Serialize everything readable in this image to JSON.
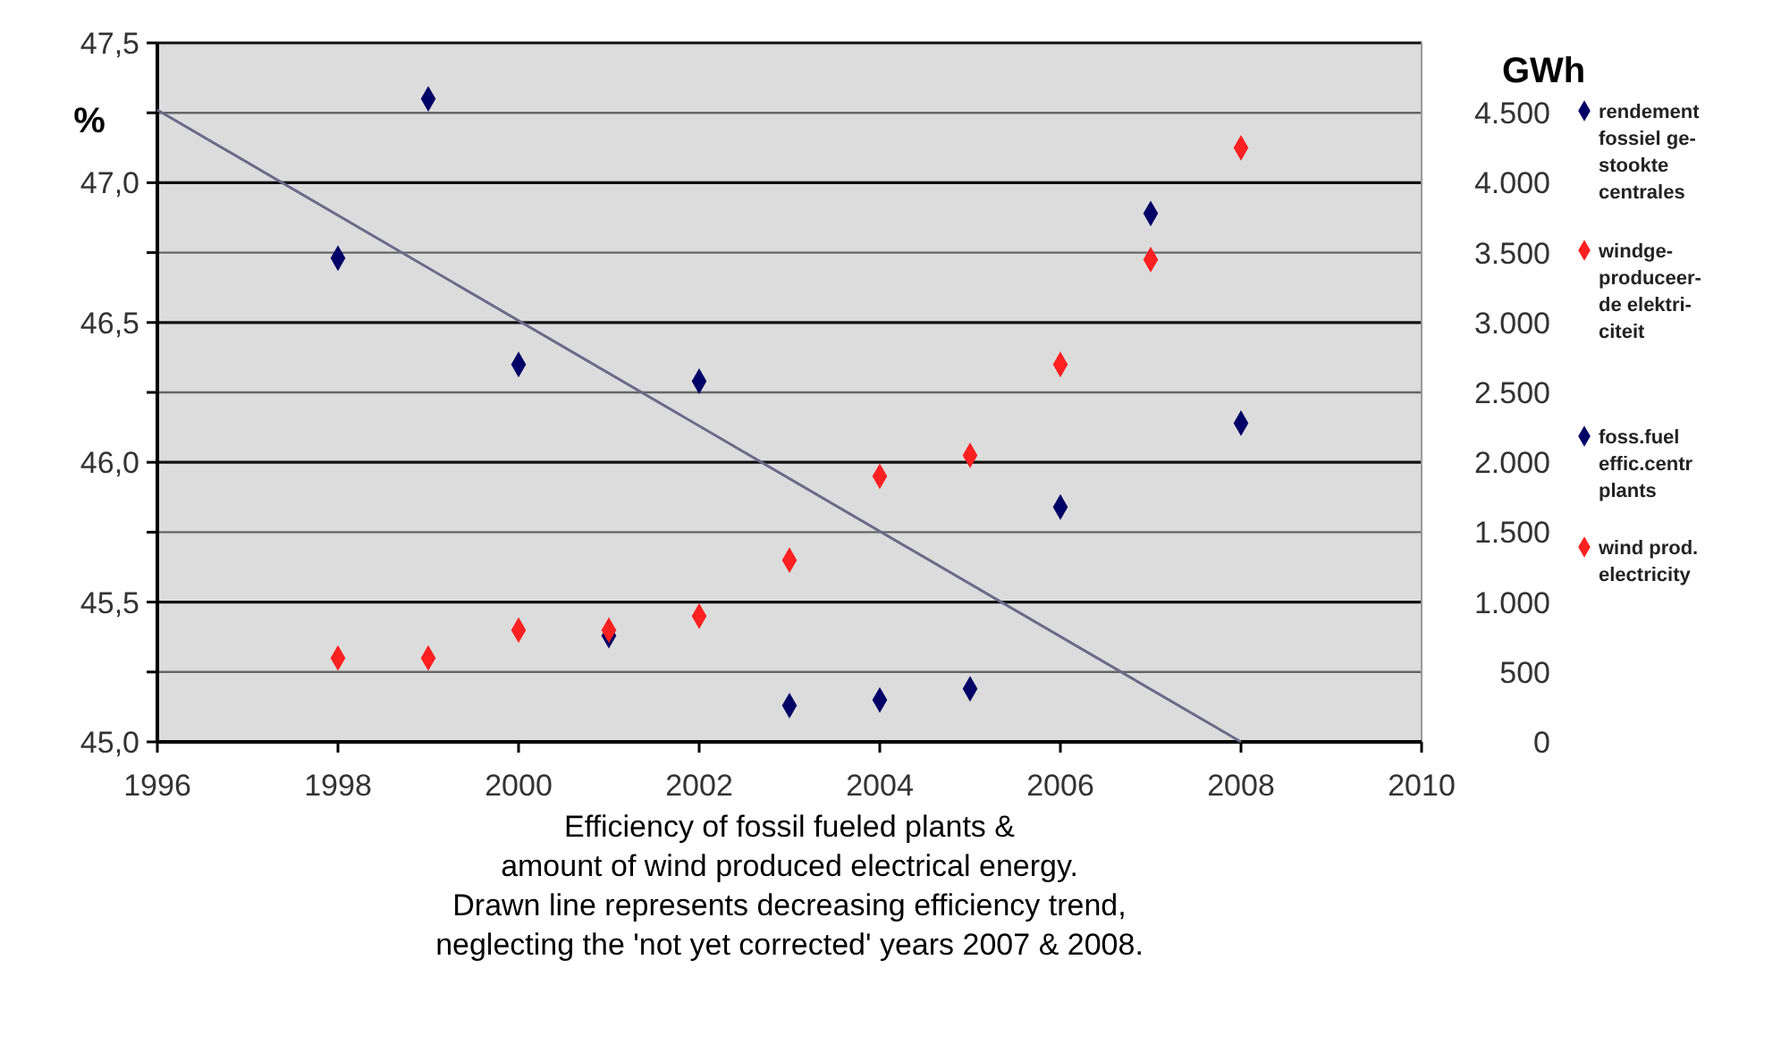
{
  "chart_data": {
    "type": "scatter",
    "marker": "diamond",
    "grid": true,
    "legend": "right",
    "ylabel": "%",
    "y2label": "GWh",
    "x": [
      1998,
      1999,
      2000,
      2001,
      2002,
      2003,
      2004,
      2005,
      2006,
      2007,
      2008
    ],
    "xlim": [
      1996,
      2010
    ],
    "xticks": [
      1996,
      1998,
      2000,
      2002,
      2004,
      2006,
      2008,
      2010
    ],
    "ylim": [
      45.0,
      47.5
    ],
    "yticks": [
      {
        "value": 45.0,
        "label": "45,0"
      },
      {
        "value": 45.25,
        "label": null
      },
      {
        "value": 45.5,
        "label": "45,5"
      },
      {
        "value": 45.75,
        "label": null
      },
      {
        "value": 46.0,
        "label": "46,0"
      },
      {
        "value": 46.25,
        "label": null
      },
      {
        "value": 46.5,
        "label": "46,5"
      },
      {
        "value": 46.75,
        "label": null
      },
      {
        "value": 47.0,
        "label": "47,0"
      },
      {
        "value": 47.25,
        "label": null
      },
      {
        "value": 47.5,
        "label": "47,5"
      }
    ],
    "y2lim": [
      0,
      5000
    ],
    "y2ticks": [
      0,
      500,
      {
        "value": 1000,
        "label": "1.000"
      },
      {
        "value": 1500,
        "label": "1.500"
      },
      {
        "value": 2000,
        "label": "2.000"
      },
      {
        "value": 2500,
        "label": "2.500"
      },
      {
        "value": 3000,
        "label": "3.000"
      },
      {
        "value": 3500,
        "label": "3.500"
      },
      {
        "value": 4000,
        "label": "4.000"
      },
      {
        "value": 4500,
        "label": "4.500"
      }
    ],
    "series": [
      {
        "name": "rendement\nfossiel ge-\nstookte\ncentrales",
        "color": "#000066",
        "values": [
          46.73,
          47.3,
          46.35,
          45.38,
          46.29,
          45.13,
          45.15,
          45.19,
          45.84,
          46.89,
          46.14
        ]
      },
      {
        "name": "windge-\nproduceer-\nde elektri-\nciteit",
        "color": "#ff2020",
        "axis": "y2",
        "values": [
          600,
          600,
          800,
          800,
          900,
          1300,
          1900,
          2050,
          2700,
          3450,
          4250
        ]
      },
      {
        "name": "foss.fuel\neffic.centr\nplants",
        "color": "#000066",
        "values": [
          null,
          null,
          null,
          null,
          null,
          null,
          null,
          null,
          null,
          null,
          null
        ]
      },
      {
        "name": "wind prod.\nelectricity",
        "color": "#ff2020",
        "axis": "y2",
        "values": [
          null,
          null,
          null,
          null,
          null,
          null,
          null,
          null,
          null,
          null,
          null
        ]
      },
      {
        "type": "line",
        "color": "#6a6a8a",
        "marker": "none",
        "x": [
          1996,
          2008
        ],
        "values": [
          47.26,
          45.0
        ]
      }
    ],
    "annotations": [
      "Efficiency of fossil fueled plants &\namount of wind produced electrical energy.\nDrawn line represents decreasing efficiency trend,\nneglecting the 'not yet corrected' years 2007 & 2008."
    ]
  }
}
